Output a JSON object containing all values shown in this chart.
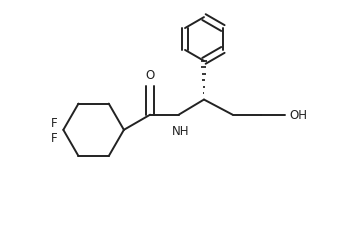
{
  "background_color": "#ffffff",
  "line_color": "#222222",
  "line_width": 1.4,
  "font_size": 8.5,
  "figsize": [
    3.42,
    2.28
  ],
  "dpi": 100,
  "xlim": [
    0.0,
    10.0
  ],
  "ylim": [
    0.0,
    6.6
  ]
}
